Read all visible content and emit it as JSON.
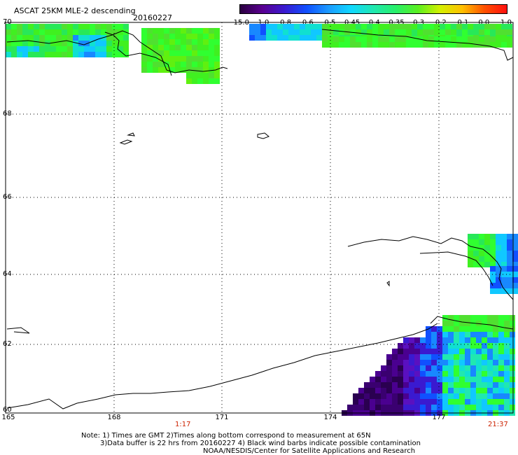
{
  "header": {
    "title": "ASCAT 25KM MLE-2 descending",
    "date": "20160227"
  },
  "colorbar": {
    "labels": [
      "-15.0",
      "-1.0",
      "-0.8",
      "-0.6",
      "-0.5",
      "-0.45",
      "-0.4",
      "-0.35",
      "-0.3",
      "-0.2",
      "-0.1",
      "0.0",
      "1.0"
    ],
    "colors": [
      "#2a0040",
      "#5a0090",
      "#3a1ad0",
      "#1050ff",
      "#1c9cff",
      "#10d8ff",
      "#20e8b0",
      "#28f06a",
      "#5af020",
      "#d4f000",
      "#ffc000",
      "#ff5000",
      "#ff1010"
    ]
  },
  "map": {
    "lat_labels": [
      "70",
      "68",
      "66",
      "64",
      "62",
      "60"
    ],
    "lon_labels": [
      "165",
      "168",
      "171",
      "174",
      "177"
    ],
    "times": [
      "1:17",
      "21:37"
    ]
  },
  "notes": {
    "line1": "Note: 1) Times are GMT 2)Times along bottom correspond to measurement at 65N",
    "line2": "3)Data buffer is 22 hrs from 20160227 4) Black wind barbs indicate possible contamination",
    "line3": "NOAA/NESDIS/Center for Satellite Applications and Research"
  },
  "colors": {
    "grid": "#000000",
    "land": "#000000",
    "time_text": "#cc2200"
  }
}
